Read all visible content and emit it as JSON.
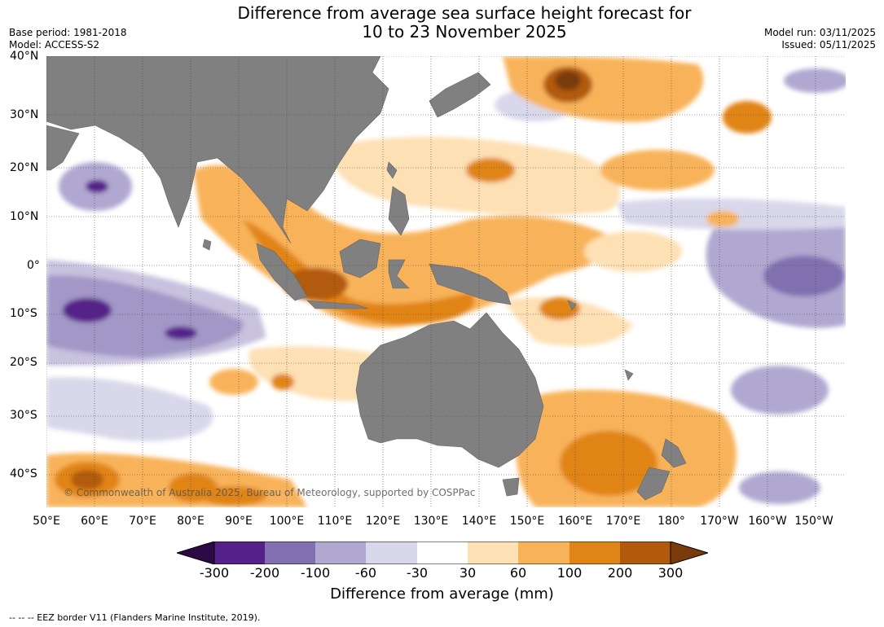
{
  "title_line1": "Difference from average sea surface height forecast for",
  "title_line2": "10 to 23 November 2025",
  "base_period": "Base period: 1981-2018",
  "model": "Model: ACCESS-S2",
  "model_run": "Model run: 03/11/2025",
  "issued": "Issued: 05/11/2025",
  "lat_labels": [
    "40°N",
    "30°N",
    "20°N",
    "10°N",
    "0°",
    "10°S",
    "20°S",
    "30°S",
    "40°S"
  ],
  "lon_labels": [
    "50°E",
    "60°E",
    "70°E",
    "80°E",
    "90°E",
    "100°E",
    "110°E",
    "120°E",
    "130°E",
    "140°E",
    "150°E",
    "160°E",
    "170°E",
    "180°",
    "170°W",
    "160°W",
    "150°W"
  ],
  "copyright": "© Commonwealth of Australia 2025, Bureau of Meteorology, supported by COSPPac",
  "colorbar": {
    "ticks": [
      "-300",
      "-200",
      "-100",
      "-60",
      "-30",
      "30",
      "60",
      "100",
      "200",
      "300"
    ],
    "label": "Difference from average (mm)",
    "colors": [
      "#2d0a45",
      "#56208a",
      "#8170b0",
      "#b0a8d0",
      "#d8d8ea",
      "#ffffff",
      "#fde0b4",
      "#f8b35a",
      "#e18417",
      "#b25a0c",
      "#7a3a0a"
    ]
  },
  "eez_note": "--  --  -- EEZ border V11 (Flanders Marine Institute, 2019).",
  "colors": {
    "land": "#808080",
    "grid": "#444444"
  }
}
